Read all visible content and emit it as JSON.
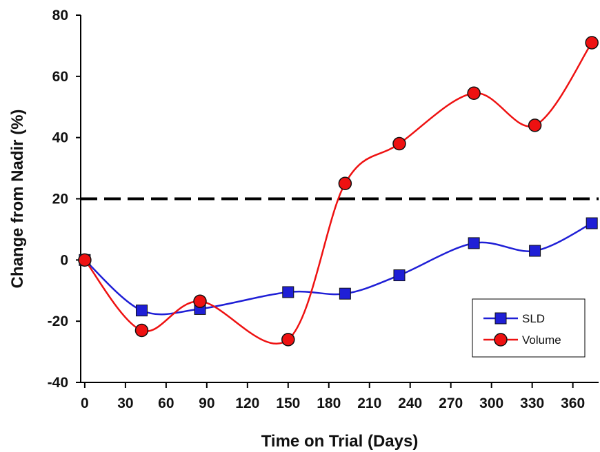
{
  "chart_data": {
    "type": "line",
    "xlabel": "Time on Trial (Days)",
    "ylabel": "Change from Nadir (%)",
    "xlim": [
      -3,
      379
    ],
    "ylim": [
      -40,
      80
    ],
    "xticks": [
      0,
      30,
      60,
      90,
      120,
      150,
      180,
      210,
      240,
      270,
      300,
      330,
      360
    ],
    "yticks": [
      -40,
      -20,
      0,
      20,
      40,
      60,
      80
    ],
    "grid": false,
    "legend_position": "bottom-right",
    "reference_line": {
      "y": 20,
      "style": "dashed",
      "color": "#000000"
    },
    "series": [
      {
        "name": "SLD",
        "marker": "square",
        "color": "#1f1fd6",
        "x": [
          0,
          42,
          85,
          150,
          192,
          232,
          287,
          332,
          374
        ],
        "y": [
          0,
          -16.5,
          -16,
          -10.5,
          -11,
          -5,
          5.5,
          3,
          12
        ]
      },
      {
        "name": "Volume",
        "marker": "circle",
        "color": "#ee1111",
        "x": [
          0,
          42,
          85,
          150,
          192,
          232,
          287,
          332,
          374
        ],
        "y": [
          0,
          -23,
          -13.5,
          -26,
          25,
          38,
          54.5,
          44,
          71
        ]
      }
    ]
  }
}
